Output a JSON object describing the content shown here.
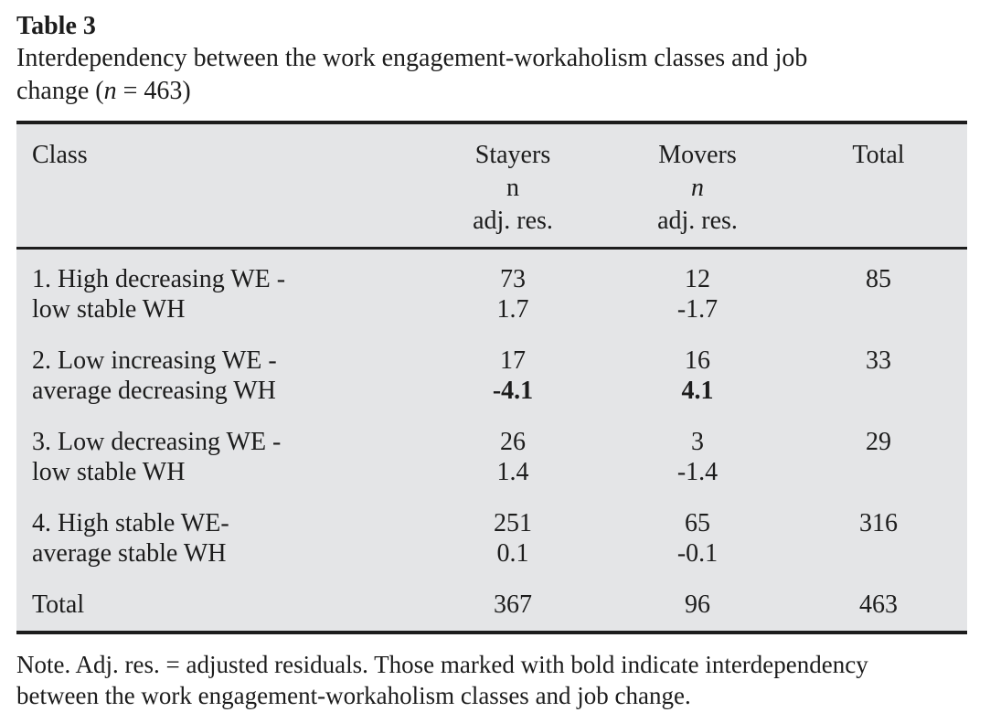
{
  "colors": {
    "page_background": "#ffffff",
    "text": "#1c1c1c",
    "table_background": "#e4e5e7",
    "rule": "#1d1d1d"
  },
  "title": "Table 3",
  "caption": {
    "line1": "Interdependency between the work engagement-workaholism classes and job",
    "line2_prefix": "change (",
    "line2_italic": "n",
    "line2_suffix": " = 463)"
  },
  "table": {
    "header": {
      "class": "Class",
      "stayers": {
        "label": "Stayers",
        "n": "n",
        "adj": "adj. res."
      },
      "movers": {
        "label": "Movers",
        "n": "n",
        "adj": "adj. res."
      },
      "total": "Total"
    },
    "rows": [
      {
        "class_line1": "1. High decreasing WE -",
        "class_line2": "low stable WH",
        "stayers_n": "73",
        "stayers_adj": "1.7",
        "movers_n": "12",
        "movers_adj": "-1.7",
        "total": "85"
      },
      {
        "class_line1": "2. Low increasing WE -",
        "class_line2": "average decreasing WH",
        "stayers_n": "17",
        "stayers_adj": "-4.1",
        "movers_n": "16",
        "movers_adj": "4.1",
        "total": "33"
      },
      {
        "class_line1": "3. Low decreasing WE -",
        "class_line2": "low stable WH",
        "stayers_n": "26",
        "stayers_adj": "1.4",
        "movers_n": "3",
        "movers_adj": "-1.4",
        "total": "29"
      },
      {
        "class_line1": "4. High stable WE-",
        "class_line2": "average stable WH",
        "stayers_n": "251",
        "stayers_adj": "0.1",
        "movers_n": "65",
        "movers_adj": "-0.1",
        "total": "316"
      }
    ],
    "total_row": {
      "label": "Total",
      "stayers": "367",
      "movers": "96",
      "total": "463"
    }
  },
  "note": {
    "line1": "Note. Adj. res. = adjusted residuals. Those marked with bold indicate interdependency",
    "line2": "between the work engagement-workaholism classes and job change."
  }
}
